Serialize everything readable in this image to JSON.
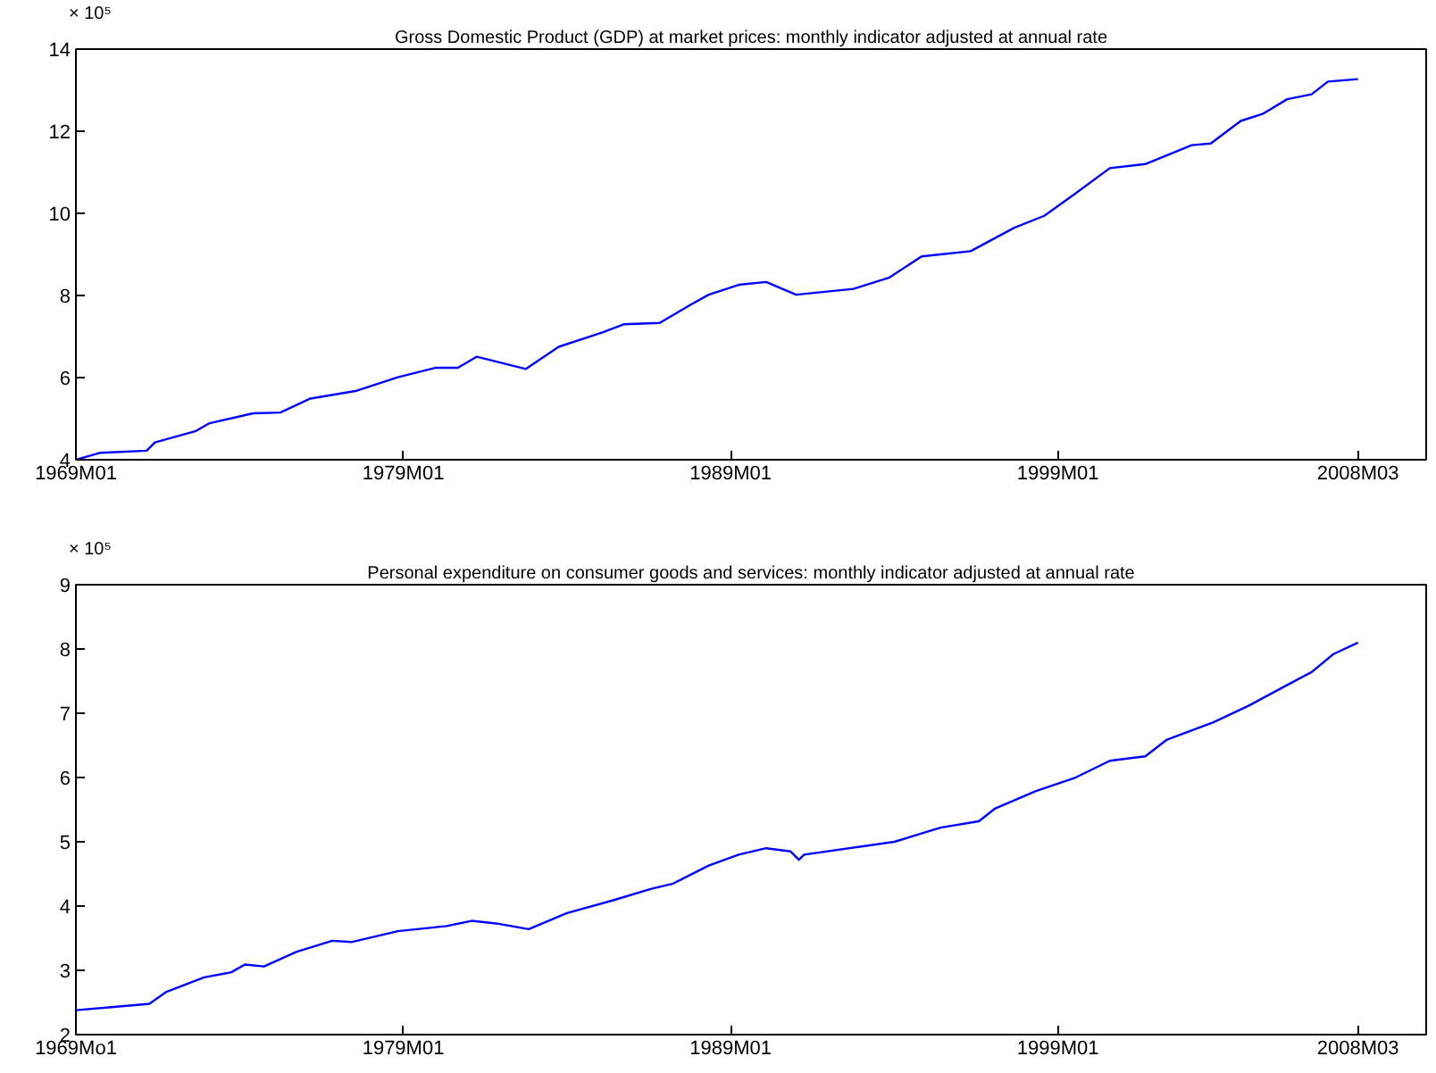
{
  "chart_data": [
    {
      "type": "line",
      "title": "Gross Domestic Product (GDP) at market prices: monthly indicator adjusted at annual rate",
      "annotations": [
        "× 10⁵"
      ],
      "color": "#0000ff",
      "x": [
        "1969-01",
        "1969-10",
        "1971-03",
        "1971-06",
        "1972-09",
        "1973-02",
        "1974-06",
        "1975-04",
        "1976-03",
        "1977-08",
        "1978-11",
        "1980-01",
        "1980-09",
        "1981-04",
        "1982-10",
        "1983-10",
        "1985-02",
        "1985-10",
        "1986-11",
        "1987-10",
        "1988-05",
        "1989-04",
        "1990-02",
        "1991-01",
        "1992-10",
        "1993-11",
        "1994-11",
        "1996-05",
        "1997-09",
        "1998-08",
        "1999-07",
        "2000-08",
        "2001-09",
        "2003-02",
        "2003-09",
        "2004-08",
        "2005-04",
        "2006-01",
        "2006-10",
        "2007-04",
        "2008-03"
      ],
      "values": [
        4.0,
        4.17,
        4.22,
        4.42,
        4.7,
        4.89,
        5.13,
        5.15,
        5.49,
        5.68,
        6.01,
        6.24,
        6.24,
        6.51,
        6.21,
        6.75,
        7.1,
        7.3,
        7.33,
        7.76,
        8.02,
        8.26,
        8.33,
        8.02,
        8.16,
        8.43,
        8.95,
        9.08,
        9.65,
        9.94,
        10.46,
        11.1,
        11.2,
        11.66,
        11.7,
        12.25,
        12.42,
        12.78,
        12.9,
        13.21,
        13.27
      ],
      "xlim": [
        "1969-01",
        "2010-04"
      ],
      "xticks": [
        {
          "value": "1969-01",
          "label": "1969M01"
        },
        {
          "value": "1979-01",
          "label": "1979M01"
        },
        {
          "value": "1989-01",
          "label": "1989M01"
        },
        {
          "value": "1999-01",
          "label": "1999M01"
        },
        {
          "value": "2008-03",
          "label": "2008M03"
        }
      ],
      "ylim": [
        4,
        14
      ],
      "yticks": [
        4,
        6,
        8,
        10,
        12,
        14
      ]
    },
    {
      "type": "line",
      "title": "Personal expenditure on consumer goods and services: monthly indicator adjusted at annual rate",
      "annotations": [
        "× 10⁵"
      ],
      "color": "#0000ff",
      "x": [
        "1969-01",
        "1970-03",
        "1971-04",
        "1971-10",
        "1972-12",
        "1973-10",
        "1974-03",
        "1974-10",
        "1975-10",
        "1976-11",
        "1977-06",
        "1978-11",
        "1980-05",
        "1981-02",
        "1981-11",
        "1982-11",
        "1984-01",
        "1985-06",
        "1986-08",
        "1987-04",
        "1988-05",
        "1989-04",
        "1990-02",
        "1990-11",
        "1991-02",
        "1991-04",
        "1994-01",
        "1995-06",
        "1996-08",
        "1997-02",
        "1998-05",
        "1999-07",
        "2000-08",
        "2001-09",
        "2002-05",
        "2003-10",
        "2004-11",
        "2006-01",
        "2006-10",
        "2007-06",
        "2008-03"
      ],
      "values": [
        2.38,
        2.43,
        2.48,
        2.66,
        2.89,
        2.97,
        3.09,
        3.06,
        3.29,
        3.46,
        3.44,
        3.61,
        3.69,
        3.77,
        3.73,
        3.64,
        3.89,
        4.09,
        4.27,
        4.35,
        4.63,
        4.8,
        4.9,
        4.85,
        4.72,
        4.8,
        5.0,
        5.22,
        5.32,
        5.52,
        5.79,
        5.99,
        6.26,
        6.33,
        6.59,
        6.86,
        7.12,
        7.44,
        7.64,
        7.92,
        8.1
      ],
      "xlim": [
        "1969-01",
        "2010-04"
      ],
      "xticks": [
        {
          "value": "1969-01",
          "label": "1969Mo1"
        },
        {
          "value": "1979-01",
          "label": "1979M01"
        },
        {
          "value": "1989-01",
          "label": "1989M01"
        },
        {
          "value": "1999-01",
          "label": "1999M01"
        },
        {
          "value": "2008-03",
          "label": "2008M03"
        }
      ],
      "ylim": [
        2,
        9
      ],
      "yticks": [
        2,
        3,
        4,
        5,
        6,
        7,
        8,
        9
      ]
    }
  ]
}
